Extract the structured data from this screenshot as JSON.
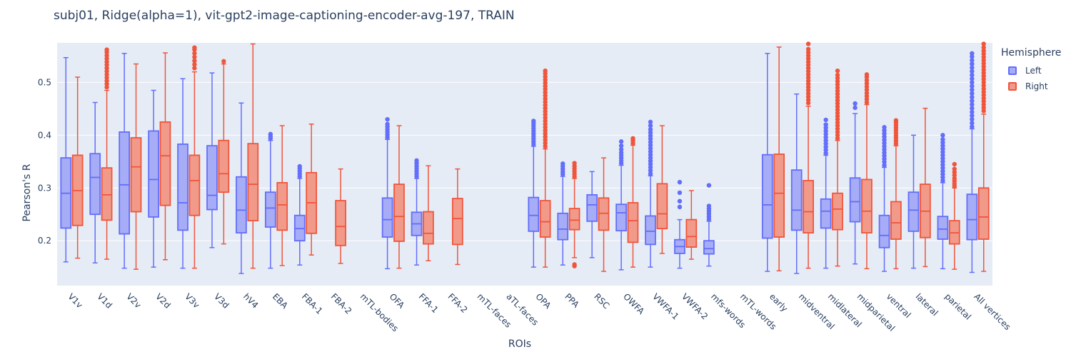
{
  "chart_data": {
    "type": "box",
    "title": "subj01, Ridge(alpha=1), vit-gpt2-image-captioning-encoder-avg-197, TRAIN",
    "xlabel": "ROIs",
    "ylabel": "Pearson's R",
    "ylim": [
      0.115,
      0.575
    ],
    "yticks": [
      0.2,
      0.3,
      0.4,
      0.5
    ],
    "ytick_labels": [
      "0.2",
      "0.3",
      "0.4",
      "0.5"
    ],
    "grid": true,
    "legend": {
      "title": "Hemisphere",
      "placement": "top-right"
    },
    "colors": {
      "Left": "#636efa",
      "Right": "#ef553b",
      "Left_fill": "#a6acf5",
      "Right_fill": "#f29a8a",
      "plot_bg": "#e5ecf6",
      "text": "#2a3f5f"
    },
    "categories": [
      "V1v",
      "V1d",
      "V2v",
      "V2d",
      "V3v",
      "V3d",
      "hV4",
      "EBA",
      "FBA-1",
      "FBA-2",
      "mTL-bodies",
      "OFA",
      "FFA-1",
      "FFA-2",
      "mTL-faces",
      "aTL-faces",
      "OPA",
      "PPA",
      "RSC",
      "OWFA",
      "VWFA-1",
      "VWFA-2",
      "mfs-words",
      "mTL-words",
      "early",
      "midventral",
      "midlateral",
      "midparietal",
      "ventral",
      "lateral",
      "parietal",
      "All vertices"
    ],
    "series": [
      {
        "name": "Left",
        "boxes": [
          {
            "category": "V1v",
            "lower": 0.16,
            "q1": 0.224,
            "median": 0.29,
            "q3": 0.357,
            "upper": 0.547,
            "outliers": []
          },
          {
            "category": "V1d",
            "lower": 0.158,
            "q1": 0.25,
            "median": 0.32,
            "q3": 0.365,
            "upper": 0.462,
            "outliers": []
          },
          {
            "category": "V2v",
            "lower": 0.148,
            "q1": 0.213,
            "median": 0.306,
            "q3": 0.406,
            "upper": 0.555,
            "outliers": []
          },
          {
            "category": "V2d",
            "lower": 0.15,
            "q1": 0.245,
            "median": 0.316,
            "q3": 0.408,
            "upper": 0.485,
            "outliers": []
          },
          {
            "category": "V3v",
            "lower": 0.148,
            "q1": 0.22,
            "median": 0.272,
            "q3": 0.383,
            "upper": 0.507,
            "outliers": []
          },
          {
            "category": "V3d",
            "lower": 0.187,
            "q1": 0.259,
            "median": 0.286,
            "q3": 0.38,
            "upper": 0.518,
            "outliers": []
          },
          {
            "category": "hV4",
            "lower": 0.138,
            "q1": 0.215,
            "median": 0.258,
            "q3": 0.321,
            "upper": 0.461,
            "outliers": []
          },
          {
            "category": "EBA",
            "lower": 0.148,
            "q1": 0.226,
            "median": 0.262,
            "q3": 0.292,
            "upper": 0.39,
            "outliers": [
              0.394,
              0.398,
              0.402
            ]
          },
          {
            "category": "FBA-1",
            "lower": 0.154,
            "q1": 0.2,
            "median": 0.223,
            "q3": 0.248,
            "upper": 0.318,
            "outliers": [
              0.322,
              0.327,
              0.332,
              0.337,
              0.341
            ]
          },
          {
            "category": "OFA",
            "lower": 0.147,
            "q1": 0.207,
            "median": 0.24,
            "q3": 0.281,
            "upper": 0.392,
            "outliers": [
              0.396,
              0.401,
              0.406,
              0.411,
              0.416,
              0.421,
              0.43
            ]
          },
          {
            "category": "FFA-1",
            "lower": 0.154,
            "q1": 0.21,
            "median": 0.232,
            "q3": 0.254,
            "upper": 0.318,
            "outliers": [
              0.322,
              0.327,
              0.332,
              0.337,
              0.342,
              0.347,
              0.352
            ]
          },
          {
            "category": "OPA",
            "lower": 0.15,
            "q1": 0.218,
            "median": 0.248,
            "q3": 0.282,
            "upper": 0.379,
            "outliers": [
              0.383,
              0.388,
              0.393,
              0.398,
              0.403,
              0.408,
              0.413,
              0.418,
              0.423,
              0.427
            ]
          },
          {
            "category": "PPA",
            "lower": 0.154,
            "q1": 0.202,
            "median": 0.222,
            "q3": 0.252,
            "upper": 0.322,
            "outliers": [
              0.326,
              0.331,
              0.336,
              0.341,
              0.346
            ]
          },
          {
            "category": "RSC",
            "lower": 0.168,
            "q1": 0.237,
            "median": 0.268,
            "q3": 0.287,
            "upper": 0.331,
            "outliers": []
          },
          {
            "category": "OWFA",
            "lower": 0.145,
            "q1": 0.219,
            "median": 0.253,
            "q3": 0.269,
            "upper": 0.343,
            "outliers": [
              0.347,
              0.352,
              0.357,
              0.362,
              0.367,
              0.373,
              0.38,
              0.388
            ]
          },
          {
            "category": "VWFA-1",
            "lower": 0.15,
            "q1": 0.193,
            "median": 0.218,
            "q3": 0.247,
            "upper": 0.323,
            "outliers": [
              0.327,
              0.333,
              0.339,
              0.345,
              0.351,
              0.357,
              0.363,
              0.369,
              0.375,
              0.381,
              0.387,
              0.393,
              0.399,
              0.405,
              0.411,
              0.418,
              0.425
            ]
          },
          {
            "category": "VWFA-2",
            "lower": 0.148,
            "q1": 0.176,
            "median": 0.189,
            "q3": 0.202,
            "upper": 0.24,
            "outliers": [
              0.264,
              0.275,
              0.291,
              0.311
            ]
          },
          {
            "category": "mfs-words",
            "lower": 0.152,
            "q1": 0.175,
            "median": 0.185,
            "q3": 0.2,
            "upper": 0.237,
            "outliers": [
              0.241,
              0.246,
              0.251,
              0.256,
              0.261,
              0.266,
              0.305
            ]
          },
          {
            "category": "early",
            "lower": 0.142,
            "q1": 0.205,
            "median": 0.268,
            "q3": 0.363,
            "upper": 0.555,
            "outliers": []
          },
          {
            "category": "midventral",
            "lower": 0.138,
            "q1": 0.22,
            "median": 0.258,
            "q3": 0.334,
            "upper": 0.478,
            "outliers": []
          },
          {
            "category": "midlateral",
            "lower": 0.148,
            "q1": 0.224,
            "median": 0.256,
            "q3": 0.279,
            "upper": 0.362,
            "outliers": [
              0.366,
              0.372,
              0.378,
              0.384,
              0.39,
              0.396,
              0.402,
              0.408,
              0.414,
              0.42,
              0.429
            ]
          },
          {
            "category": "midparietal",
            "lower": 0.156,
            "q1": 0.236,
            "median": 0.274,
            "q3": 0.319,
            "upper": 0.441,
            "outliers": [
              0.452,
              0.46
            ]
          },
          {
            "category": "ventral",
            "lower": 0.142,
            "q1": 0.187,
            "median": 0.21,
            "q3": 0.248,
            "upper": 0.339,
            "outliers": [
              0.343,
              0.349,
              0.355,
              0.361,
              0.367,
              0.373,
              0.379,
              0.385,
              0.391,
              0.397,
              0.403,
              0.409,
              0.415
            ]
          },
          {
            "category": "lateral",
            "lower": 0.148,
            "q1": 0.218,
            "median": 0.258,
            "q3": 0.292,
            "upper": 0.4,
            "outliers": []
          },
          {
            "category": "parietal",
            "lower": 0.147,
            "q1": 0.203,
            "median": 0.222,
            "q3": 0.246,
            "upper": 0.31,
            "outliers": [
              0.314,
              0.32,
              0.326,
              0.332,
              0.338,
              0.344,
              0.35,
              0.356,
              0.362,
              0.368,
              0.374,
              0.38,
              0.386,
              0.392,
              0.4
            ]
          },
          {
            "category": "All vertices",
            "lower": 0.14,
            "q1": 0.202,
            "median": 0.24,
            "q3": 0.288,
            "upper": 0.412,
            "outliers": [
              0.416,
              0.423,
              0.43,
              0.437,
              0.444,
              0.451,
              0.458,
              0.465,
              0.472,
              0.479,
              0.486,
              0.493,
              0.5,
              0.507,
              0.514,
              0.521,
              0.528,
              0.535,
              0.542,
              0.549,
              0.555
            ]
          }
        ]
      },
      {
        "name": "Right",
        "boxes": [
          {
            "category": "V1v",
            "lower": 0.167,
            "q1": 0.229,
            "median": 0.295,
            "q3": 0.362,
            "upper": 0.51,
            "outliers": []
          },
          {
            "category": "V1d",
            "lower": 0.165,
            "q1": 0.239,
            "median": 0.287,
            "q3": 0.338,
            "upper": 0.485,
            "outliers": [
              0.491,
              0.497,
              0.503,
              0.509,
              0.515,
              0.521,
              0.527,
              0.533,
              0.539,
              0.545,
              0.551,
              0.557,
              0.562
            ]
          },
          {
            "category": "V2v",
            "lower": 0.146,
            "q1": 0.255,
            "median": 0.34,
            "q3": 0.395,
            "upper": 0.535,
            "outliers": []
          },
          {
            "category": "V2d",
            "lower": 0.164,
            "q1": 0.267,
            "median": 0.361,
            "q3": 0.425,
            "upper": 0.556,
            "outliers": []
          },
          {
            "category": "V3v",
            "lower": 0.148,
            "q1": 0.248,
            "median": 0.314,
            "q3": 0.362,
            "upper": 0.52,
            "outliers": [
              0.527,
              0.534,
              0.541,
              0.548,
              0.555,
              0.562,
              0.566
            ]
          },
          {
            "category": "V3d",
            "lower": 0.194,
            "q1": 0.292,
            "median": 0.327,
            "q3": 0.39,
            "upper": 0.535,
            "outliers": [
              0.54
            ]
          },
          {
            "category": "hV4",
            "lower": 0.148,
            "q1": 0.238,
            "median": 0.307,
            "q3": 0.384,
            "upper": 0.573,
            "outliers": []
          },
          {
            "category": "EBA",
            "lower": 0.153,
            "q1": 0.22,
            "median": 0.268,
            "q3": 0.31,
            "upper": 0.418,
            "outliers": []
          },
          {
            "category": "FBA-1",
            "lower": 0.173,
            "q1": 0.214,
            "median": 0.272,
            "q3": 0.329,
            "upper": 0.421,
            "outliers": []
          },
          {
            "category": "FBA-2",
            "lower": 0.157,
            "q1": 0.191,
            "median": 0.227,
            "q3": 0.276,
            "upper": 0.336,
            "outliers": []
          },
          {
            "category": "OFA",
            "lower": 0.148,
            "q1": 0.199,
            "median": 0.246,
            "q3": 0.307,
            "upper": 0.418,
            "outliers": []
          },
          {
            "category": "FFA-1",
            "lower": 0.162,
            "q1": 0.194,
            "median": 0.214,
            "q3": 0.255,
            "upper": 0.342,
            "outliers": []
          },
          {
            "category": "FFA-2",
            "lower": 0.155,
            "q1": 0.193,
            "median": 0.242,
            "q3": 0.28,
            "upper": 0.336,
            "outliers": []
          },
          {
            "category": "OPA",
            "lower": 0.15,
            "q1": 0.207,
            "median": 0.236,
            "q3": 0.276,
            "upper": 0.374,
            "outliers": [
              0.379,
              0.385,
              0.391,
              0.397,
              0.403,
              0.409,
              0.415,
              0.421,
              0.427,
              0.433,
              0.439,
              0.445,
              0.451,
              0.457,
              0.463,
              0.469,
              0.475,
              0.481,
              0.487,
              0.493,
              0.499,
              0.505,
              0.511,
              0.517,
              0.522
            ]
          },
          {
            "category": "PPA",
            "lower": 0.168,
            "q1": 0.221,
            "median": 0.239,
            "q3": 0.261,
            "upper": 0.318,
            "outliers": [
              0.152,
              0.155,
              0.322,
              0.327,
              0.332,
              0.337,
              0.342,
              0.347
            ]
          },
          {
            "category": "RSC",
            "lower": 0.142,
            "q1": 0.22,
            "median": 0.252,
            "q3": 0.281,
            "upper": 0.357,
            "outliers": []
          },
          {
            "category": "OWFA",
            "lower": 0.15,
            "q1": 0.197,
            "median": 0.238,
            "q3": 0.272,
            "upper": 0.381,
            "outliers": [
              0.385,
              0.39,
              0.394
            ]
          },
          {
            "category": "VWFA-1",
            "lower": 0.176,
            "q1": 0.223,
            "median": 0.251,
            "q3": 0.308,
            "upper": 0.418,
            "outliers": []
          },
          {
            "category": "VWFA-2",
            "lower": 0.165,
            "q1": 0.188,
            "median": 0.208,
            "q3": 0.24,
            "upper": 0.295,
            "outliers": []
          },
          {
            "category": "early",
            "lower": 0.143,
            "q1": 0.207,
            "median": 0.29,
            "q3": 0.364,
            "upper": 0.567,
            "outliers": []
          },
          {
            "category": "midventral",
            "lower": 0.148,
            "q1": 0.215,
            "median": 0.255,
            "q3": 0.314,
            "upper": 0.455,
            "outliers": [
              0.461,
              0.467,
              0.473,
              0.479,
              0.485,
              0.491,
              0.497,
              0.503,
              0.509,
              0.515,
              0.521,
              0.527,
              0.533,
              0.539,
              0.545,
              0.551,
              0.557,
              0.563,
              0.573
            ]
          },
          {
            "category": "midlateral",
            "lower": 0.152,
            "q1": 0.221,
            "median": 0.26,
            "q3": 0.29,
            "upper": 0.39,
            "outliers": [
              0.394,
              0.4,
              0.406,
              0.412,
              0.418,
              0.424,
              0.43,
              0.436,
              0.442,
              0.448,
              0.454,
              0.46,
              0.466,
              0.472,
              0.478,
              0.484,
              0.49,
              0.496,
              0.502,
              0.508,
              0.514,
              0.522
            ]
          },
          {
            "category": "midparietal",
            "lower": 0.147,
            "q1": 0.215,
            "median": 0.256,
            "q3": 0.316,
            "upper": 0.458,
            "outliers": [
              0.462,
              0.468,
              0.474,
              0.48,
              0.486,
              0.492,
              0.498,
              0.504,
              0.51,
              0.515
            ]
          },
          {
            "category": "ventral",
            "lower": 0.147,
            "q1": 0.203,
            "median": 0.234,
            "q3": 0.274,
            "upper": 0.38,
            "outliers": [
              0.384,
              0.389,
              0.394,
              0.399,
              0.404,
              0.409,
              0.414,
              0.419,
              0.424,
              0.428
            ]
          },
          {
            "category": "lateral",
            "lower": 0.151,
            "q1": 0.206,
            "median": 0.256,
            "q3": 0.307,
            "upper": 0.451,
            "outliers": []
          },
          {
            "category": "parietal",
            "lower": 0.146,
            "q1": 0.194,
            "median": 0.215,
            "q3": 0.238,
            "upper": 0.3,
            "outliers": [
              0.304,
              0.308,
              0.313,
              0.318,
              0.324,
              0.33,
              0.336,
              0.345
            ]
          },
          {
            "category": "All vertices",
            "lower": 0.142,
            "q1": 0.203,
            "median": 0.245,
            "q3": 0.3,
            "upper": 0.44,
            "outliers": [
              0.446,
              0.452,
              0.458,
              0.464,
              0.47,
              0.476,
              0.482,
              0.488,
              0.494,
              0.5,
              0.506,
              0.512,
              0.518,
              0.524,
              0.53,
              0.536,
              0.542,
              0.548,
              0.554,
              0.56,
              0.566,
              0.573
            ]
          }
        ]
      }
    ]
  }
}
